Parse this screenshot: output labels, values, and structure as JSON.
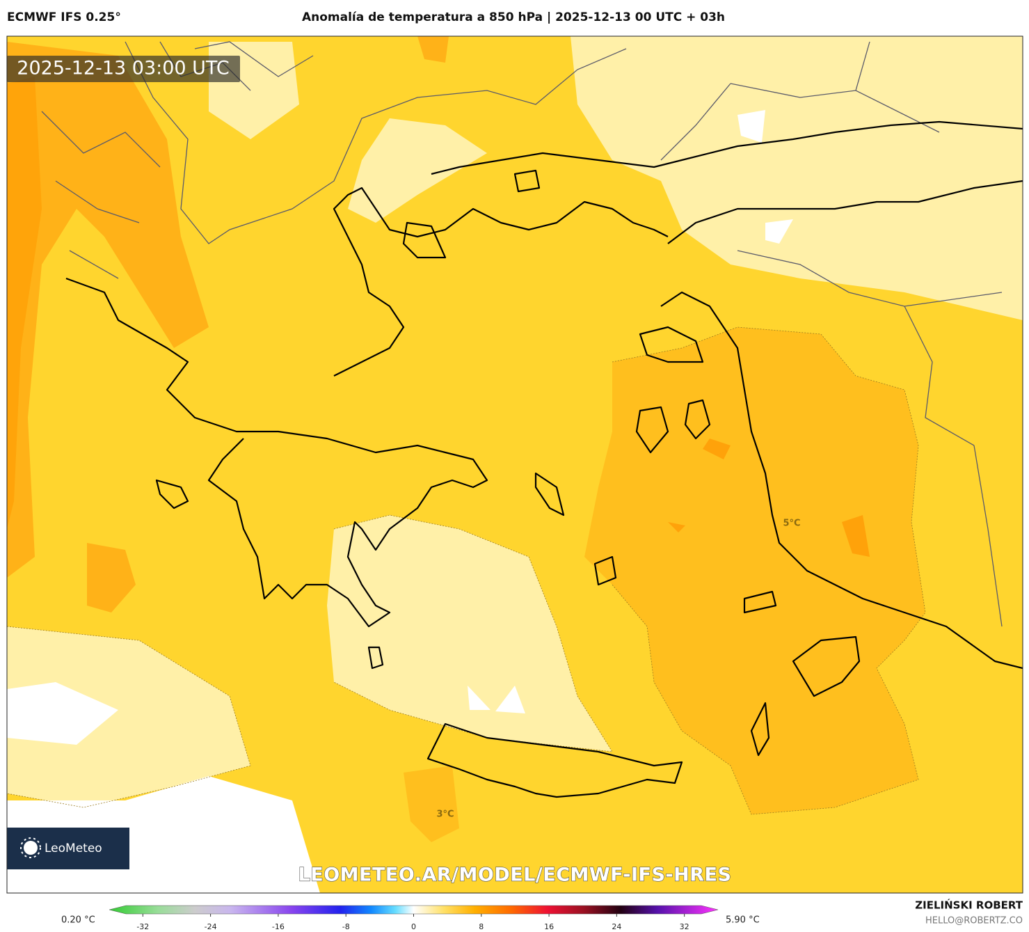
{
  "header": {
    "model": "ECMWF IFS 0.25°",
    "title": "Anomalía de temperatura a 850 hPa | 2025-12-13 00 UTC + 03h"
  },
  "map": {
    "timestamp": "2025-12-13 03:00 UTC",
    "watermark": "LEOMETEO.AR/MODEL/ECMWF-IFS-HRES",
    "logo": "LeoMeteo",
    "contour_labels": [
      "5°C",
      "3°C"
    ]
  },
  "colorbar": {
    "min_label": "0.20 °C",
    "max_label": "5.90 °C",
    "lim": [
      -34,
      34
    ],
    "ticks": [
      -32,
      -24,
      -16,
      -8,
      0,
      8,
      16,
      24,
      32
    ]
  },
  "footer": {
    "author": "ZIELIŃSKI ROBERT",
    "email": "HELLO@ROBERTZ.CO"
  }
}
